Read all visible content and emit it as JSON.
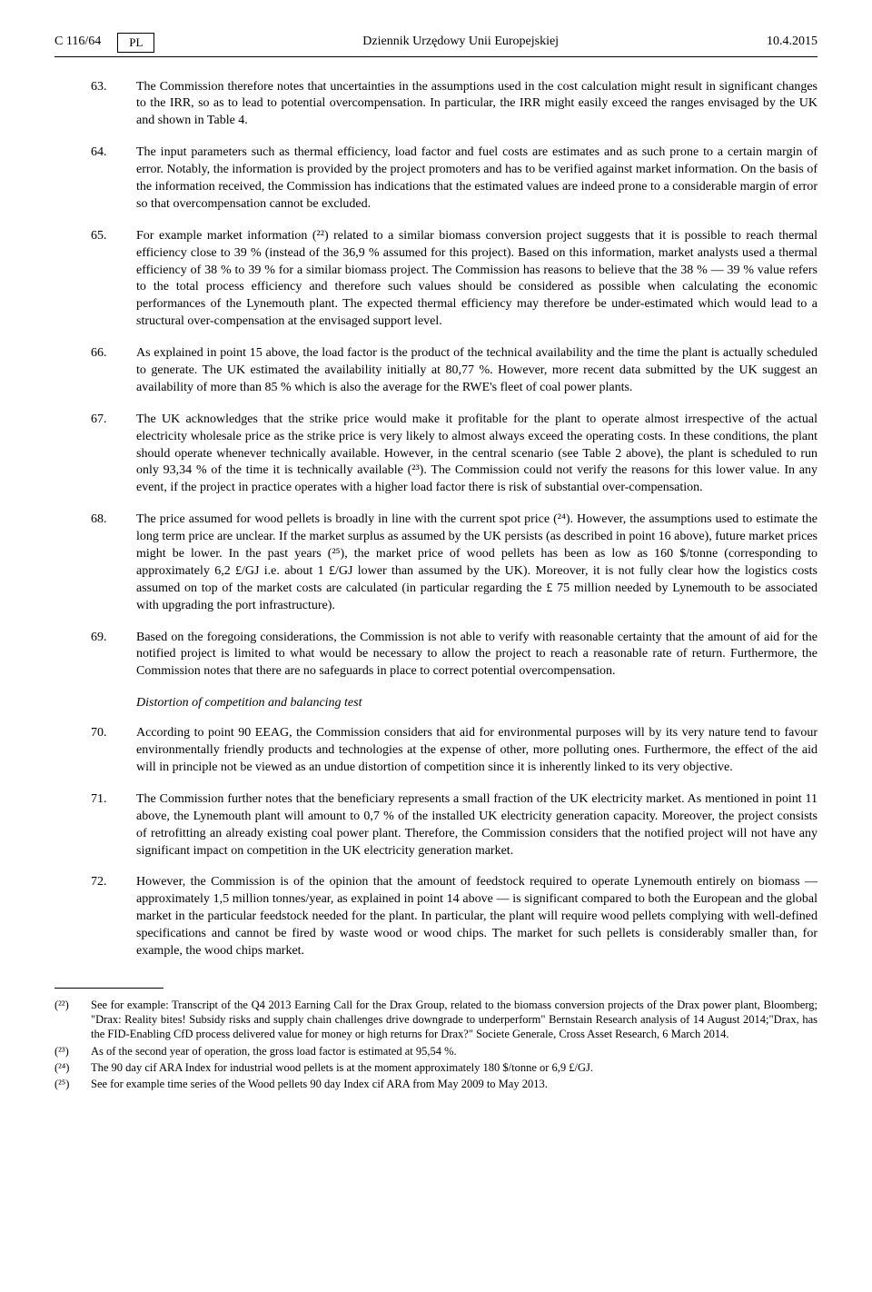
{
  "header": {
    "page_ref": "C 116/64",
    "lang": "PL",
    "journal": "Dziennik Urzędowy Unii Europejskiej",
    "date": "10.4.2015"
  },
  "paragraphs": [
    {
      "num": "63.",
      "text": "The Commission therefore notes that uncertainties in the assumptions used in the cost calculation might result in significant changes to the IRR, so as to lead to potential overcompensation. In particular, the IRR might easily exceed the ranges envisaged by the UK and shown in Table 4."
    },
    {
      "num": "64.",
      "text": "The input parameters such as thermal efficiency, load factor and fuel costs are estimates and as such prone to a certain margin of error. Notably, the information is provided by the project promoters and has to be verified against market information. On the basis of the information received, the Commission has indications that the estimated values are indeed prone to a considerable margin of error so that overcompensation cannot be excluded."
    },
    {
      "num": "65.",
      "text": "For example market information (²²) related to a similar biomass conversion project suggests that it is possible to reach thermal efficiency close to 39 % (instead of the 36,9 % assumed for this project). Based on this information, market analysts used a thermal efficiency of 38 % to 39 % for a similar biomass project. The Commission has reasons to believe that the 38 % — 39 % value refers to the total process efficiency and therefore such values should be considered as possible when calculating the economic performances of the Lynemouth plant. The expected thermal efficiency may therefore be under-estimated which would lead to a structural over-compensation at the envisaged support level."
    },
    {
      "num": "66.",
      "text": "As explained in point 15 above, the load factor is the product of the technical availability and the time the plant is actually scheduled to generate. The UK estimated the availability initially at 80,77 %. However, more recent data submitted by the UK suggest an availability of more than 85 % which is also the average for the RWE's fleet of coal power plants."
    },
    {
      "num": "67.",
      "text": "The UK acknowledges that the strike price would make it profitable for the plant to operate almost irrespective of the actual electricity wholesale price as the strike price is very likely to almost always exceed the operating costs. In these conditions, the plant should operate whenever technically available. However, in the central scenario (see Table 2 above), the plant is scheduled to run only 93,34 % of the time it is technically available (²³). The Commission could not verify the reasons for this lower value. In any event, if the project in practice operates with a higher load factor there is risk of substantial over-compensation."
    },
    {
      "num": "68.",
      "text": "The price assumed for wood pellets is broadly in line with the current spot price (²⁴). However, the assumptions used to estimate the long term price are unclear. If the market surplus as assumed by the UK persists (as described in point 16 above), future market prices might be lower. In the past years (²⁵), the market price of wood pellets has been as low as 160 $/tonne (corresponding to approximately 6,2 £/GJ i.e. about 1 £/GJ lower than assumed by the UK). Moreover, it is not fully clear how the logistics costs assumed on top of the market costs are calculated (in particular regarding the £ 75 million needed by Lynemouth to be associated with upgrading the port infrastructure)."
    },
    {
      "num": "69.",
      "text": "Based on the foregoing considerations, the Commission is not able to verify with reasonable certainty that the amount of aid for the notified project is limited to what would be necessary to allow the project to reach a reasonable rate of return. Furthermore, the Commission notes that there are no safeguards in place to correct potential overcompensation."
    }
  ],
  "section_title": "Distortion of competition and balancing test",
  "paragraphs2": [
    {
      "num": "70.",
      "text": "According to point 90 EEAG, the Commission considers that aid for environmental purposes will by its very nature tend to favour environmentally friendly products and technologies at the expense of other, more polluting ones. Furthermore, the effect of the aid will in principle not be viewed as an undue distortion of competition since it is inherently linked to its very objective."
    },
    {
      "num": "71.",
      "text": "The Commission further notes that the beneficiary represents a small fraction of the UK electricity market. As mentioned in point 11 above, the Lynemouth plant will amount to 0,7 % of the installed UK electricity generation capacity. Moreover, the project consists of retrofitting an already existing coal power plant. Therefore, the Commission considers that the notified project will not have any significant impact on competition in the UK electricity generation market."
    },
    {
      "num": "72.",
      "text": "However, the Commission is of the opinion that the amount of feedstock required to operate Lynemouth entirely on biomass — approximately 1,5 million tonnes/year, as explained in point 14 above — is significant compared to both the European and the global market in the particular feedstock needed for the plant. In particular, the plant will require wood pellets complying with well-defined specifications and cannot be fired by waste wood or wood chips. The market for such pellets is considerably smaller than, for example, the wood chips market."
    }
  ],
  "footnotes": [
    {
      "num": "(²²)",
      "text": "See for example:\nTranscript of the Q4 2013 Earning Call for the Drax Group, related to the biomass conversion projects of the Drax power plant, Bloomberg; \"Drax: Reality bites! Subsidy risks and supply chain challenges drive downgrade to underperform\" Bernstain Research analysis of 14 August 2014;\"Drax, has the FID-Enabling CfD process delivered value for money or high returns for Drax?\" Societe Generale, Cross Asset Research, 6 March 2014."
    },
    {
      "num": "(²³)",
      "text": "As of the second year of operation, the gross load factor is estimated at 95,54 %."
    },
    {
      "num": "(²⁴)",
      "text": "The 90 day cif ARA Index for industrial wood pellets is at the moment approximately 180 $/tonne or 6,9 £/GJ."
    },
    {
      "num": "(²⁵)",
      "text": "See for example time series of the Wood pellets 90 day Index cif ARA from May 2009 to May 2013."
    }
  ]
}
